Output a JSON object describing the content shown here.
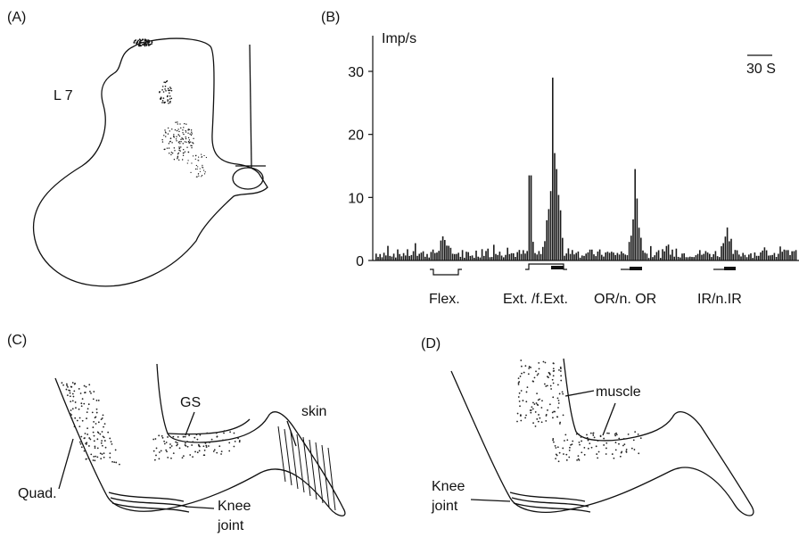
{
  "panels": {
    "A": {
      "tag": "(A)",
      "segment_label": "L 7"
    },
    "B": {
      "tag": "(B)",
      "unit": "Imp/s",
      "scale_bar": "30 S",
      "stimuli": [
        "Flex.",
        "Ext. /f.Ext.",
        "OR/n. OR",
        "IR/n.IR"
      ]
    },
    "C": {
      "tag": "(C)",
      "labels": {
        "quad": "Quad.",
        "gs": "GS",
        "skin": "skin",
        "knee1": "Knee",
        "knee2": "joint"
      }
    },
    "D": {
      "tag": "(D)",
      "labels": {
        "muscle": "muscle",
        "knee1": "Knee",
        "knee2": "joint"
      }
    }
  },
  "chart_data": {
    "type": "bar",
    "title": "",
    "xlabel": "",
    "ylabel": "Imp/s",
    "ylim": [
      0,
      33
    ],
    "yticks": [
      0,
      10,
      20,
      30
    ],
    "x_segments": [
      "Flex.",
      "Ext. /f.Ext.",
      "OR/n. OR",
      "IR/n.IR"
    ],
    "peaks": [
      {
        "stimulus": "Flex.",
        "max_rate": 4.5
      },
      {
        "stimulus": "Ext. /f.Ext.",
        "max_rate": 29
      },
      {
        "stimulus": "OR/n. OR",
        "max_rate": 14.5
      },
      {
        "stimulus": "IR/n.IR",
        "max_rate": 7.5
      }
    ],
    "baseline_rate": 1
  }
}
